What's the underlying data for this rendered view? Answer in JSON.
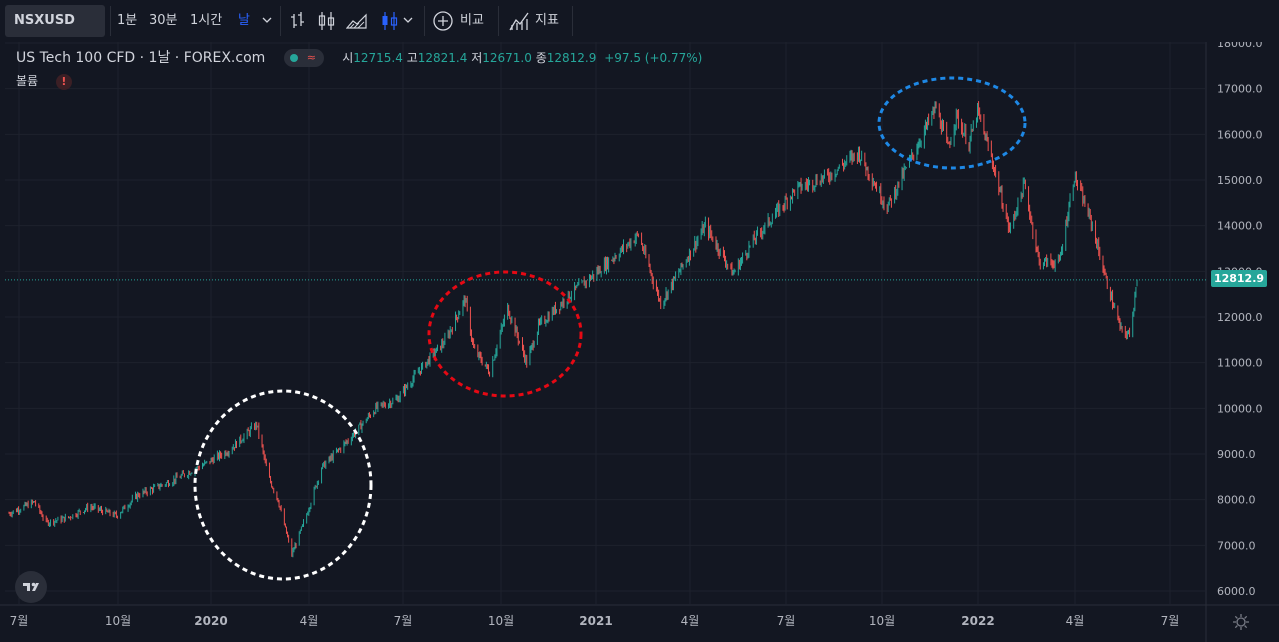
{
  "toolbar": {
    "symbol": "NSXUSD",
    "intervals": [
      "1분",
      "30분",
      "1시간"
    ],
    "active_interval": "날",
    "compare_label": "비교",
    "indicators_label": "지표"
  },
  "legend": {
    "title": "US Tech 100 CFD",
    "interval": "1날",
    "source": "FOREX.com",
    "open_label": "시",
    "open": "12715.4",
    "high_label": "고",
    "high": "12821.4",
    "low_label": "저",
    "low": "12671.0",
    "close_label": "종",
    "close": "12812.9",
    "change": "+97.5 (+0.77%)",
    "volume_label": "볼륨"
  },
  "colors": {
    "background": "#131722",
    "up": "#26a69a",
    "down": "#ef5350",
    "grid": "#1e222d",
    "annotation_white": "#ffffff",
    "annotation_red": "#e50914",
    "annotation_blue": "#1e88e5"
  },
  "chart_data": {
    "type": "candlestick",
    "y_axis": {
      "min": 6000,
      "max": 18000,
      "ticks": [
        "6000.0",
        "7000.0",
        "8000.0",
        "9000.0",
        "10000.0",
        "11000.0",
        "12000.0",
        "13000.0",
        "14000.0",
        "15000.0",
        "16000.0",
        "17000.0",
        "18000.0"
      ],
      "position": "right"
    },
    "x_axis": {
      "ticks": [
        "7월",
        "10월",
        "2020",
        "4월",
        "7월",
        "10월",
        "2021",
        "4월",
        "7월",
        "10월",
        "2022",
        "4월",
        "7월"
      ],
      "range": [
        "2019-07",
        "2022-06"
      ]
    },
    "last_price": "12812.9",
    "anchors": [
      [
        "2019-07-01",
        7700
      ],
      [
        "2019-07-25",
        7950
      ],
      [
        "2019-08-05",
        7500
      ],
      [
        "2019-08-25",
        7600
      ],
      [
        "2019-09-15",
        7850
      ],
      [
        "2019-10-10",
        7650
      ],
      [
        "2019-10-30",
        8100
      ],
      [
        "2019-11-30",
        8400
      ],
      [
        "2019-12-30",
        8750
      ],
      [
        "2020-01-25",
        9100
      ],
      [
        "2020-02-19",
        9650
      ],
      [
        "2020-03-01",
        8500
      ],
      [
        "2020-03-10",
        8000
      ],
      [
        "2020-03-23",
        6800
      ],
      [
        "2020-04-05",
        7600
      ],
      [
        "2020-04-20",
        8700
      ],
      [
        "2020-05-15",
        9300
      ],
      [
        "2020-06-10",
        10000
      ],
      [
        "2020-06-30",
        10200
      ],
      [
        "2020-07-20",
        10800
      ],
      [
        "2020-08-15",
        11500
      ],
      [
        "2020-09-02",
        12400
      ],
      [
        "2020-09-10",
        11300
      ],
      [
        "2020-09-25",
        10800
      ],
      [
        "2020-10-12",
        12200
      ],
      [
        "2020-10-30",
        11000
      ],
      [
        "2020-11-10",
        11800
      ],
      [
        "2020-12-10",
        12500
      ],
      [
        "2020-12-31",
        12900
      ],
      [
        "2021-02-12",
        13800
      ],
      [
        "2021-03-05",
        12300
      ],
      [
        "2021-03-20",
        12900
      ],
      [
        "2021-04-16",
        14000
      ],
      [
        "2021-05-12",
        12950
      ],
      [
        "2021-06-01",
        13700
      ],
      [
        "2021-07-10",
        14800
      ],
      [
        "2021-08-10",
        15100
      ],
      [
        "2021-09-07",
        15600
      ],
      [
        "2021-10-04",
        14400
      ],
      [
        "2021-10-25",
        15400
      ],
      [
        "2021-11-19",
        16600
      ],
      [
        "2021-11-30",
        15700
      ],
      [
        "2021-12-08",
        16400
      ],
      [
        "2021-12-20",
        15800
      ],
      [
        "2021-12-28",
        16500
      ],
      [
        "2022-01-10",
        15500
      ],
      [
        "2022-01-27",
        13900
      ],
      [
        "2022-02-10",
        14900
      ],
      [
        "2022-02-24",
        13200
      ],
      [
        "2022-03-15",
        13200
      ],
      [
        "2022-03-29",
        15100
      ],
      [
        "2022-04-15",
        14000
      ],
      [
        "2022-04-28",
        12800
      ],
      [
        "2022-05-12",
        11700
      ],
      [
        "2022-05-20",
        11600
      ],
      [
        "2022-05-27",
        12812.9
      ]
    ],
    "annotations": [
      {
        "shape": "circle",
        "color": "white",
        "around": "2020-03"
      },
      {
        "shape": "ellipse",
        "color": "red",
        "around": "2020-10"
      },
      {
        "shape": "ellipse",
        "color": "blue",
        "around": "2021-12"
      }
    ]
  }
}
